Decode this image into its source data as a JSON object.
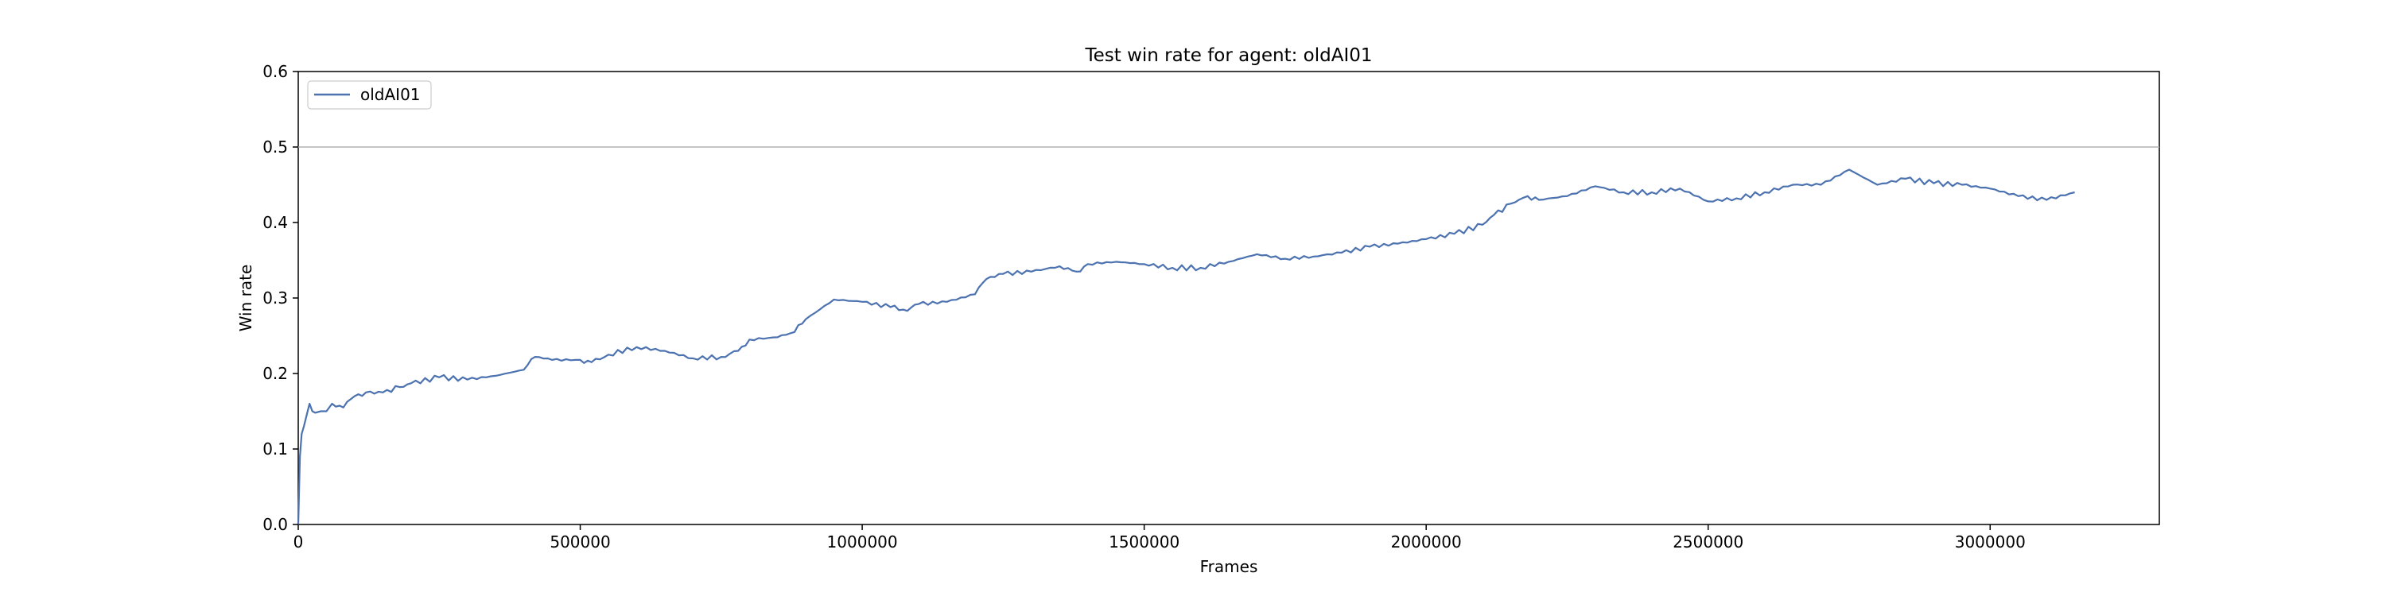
{
  "chart_data": {
    "type": "line",
    "title": "Test win rate for agent: oldAI01",
    "xlabel": "Frames",
    "ylabel": "Win rate",
    "xlim": [
      0,
      3300000
    ],
    "ylim": [
      0,
      0.6
    ],
    "x_ticks": [
      0,
      500000,
      1000000,
      1500000,
      2000000,
      2500000,
      3000000
    ],
    "x_tick_labels": [
      "0",
      "500000",
      "1000000",
      "1500000",
      "2000000",
      "2500000",
      "3000000"
    ],
    "y_ticks": [
      0.0,
      0.1,
      0.2,
      0.3,
      0.4,
      0.5,
      0.6
    ],
    "y_tick_labels": [
      "0.0",
      "0.1",
      "0.2",
      "0.3",
      "0.4",
      "0.5",
      "0.6"
    ],
    "grid": false,
    "legend_position": "top-left",
    "reference_line": {
      "y": 0.5,
      "color": "#b0b0b0"
    },
    "series": [
      {
        "name": "oldAI01",
        "color": "#4c72b0",
        "x": [
          0,
          3000,
          6000,
          10000,
          15000,
          20000,
          25000,
          30000,
          40000,
          50000,
          60000,
          80000,
          100000,
          120000,
          150000,
          180000,
          200000,
          250000,
          300000,
          350000,
          400000,
          420000,
          450000,
          500000,
          520000,
          550000,
          600000,
          650000,
          700000,
          750000,
          780000,
          800000,
          850000,
          880000,
          900000,
          950000,
          1000000,
          1050000,
          1080000,
          1100000,
          1150000,
          1200000,
          1220000,
          1250000,
          1300000,
          1350000,
          1380000,
          1400000,
          1450000,
          1500000,
          1550000,
          1600000,
          1650000,
          1700000,
          1750000,
          1800000,
          1850000,
          1900000,
          1950000,
          2000000,
          2050000,
          2100000,
          2120000,
          2150000,
          2180000,
          2200000,
          2250000,
          2300000,
          2350000,
          2400000,
          2450000,
          2500000,
          2550000,
          2600000,
          2650000,
          2700000,
          2750000,
          2800000,
          2850000,
          2900000,
          2950000,
          3000000,
          3050000,
          3100000,
          3150000
        ],
        "y": [
          0.0,
          0.09,
          0.12,
          0.13,
          0.145,
          0.16,
          0.15,
          0.148,
          0.15,
          0.15,
          0.16,
          0.155,
          0.17,
          0.175,
          0.175,
          0.182,
          0.187,
          0.195,
          0.192,
          0.197,
          0.205,
          0.222,
          0.218,
          0.218,
          0.215,
          0.225,
          0.235,
          0.23,
          0.22,
          0.222,
          0.23,
          0.245,
          0.248,
          0.255,
          0.272,
          0.298,
          0.295,
          0.288,
          0.283,
          0.292,
          0.295,
          0.305,
          0.325,
          0.332,
          0.335,
          0.342,
          0.335,
          0.345,
          0.348,
          0.345,
          0.34,
          0.34,
          0.348,
          0.358,
          0.352,
          0.355,
          0.36,
          0.368,
          0.372,
          0.378,
          0.385,
          0.397,
          0.41,
          0.425,
          0.435,
          0.43,
          0.435,
          0.448,
          0.44,
          0.44,
          0.445,
          0.428,
          0.432,
          0.44,
          0.45,
          0.45,
          0.47,
          0.45,
          0.458,
          0.452,
          0.45,
          0.445,
          0.435,
          0.43,
          0.44
        ]
      }
    ]
  }
}
